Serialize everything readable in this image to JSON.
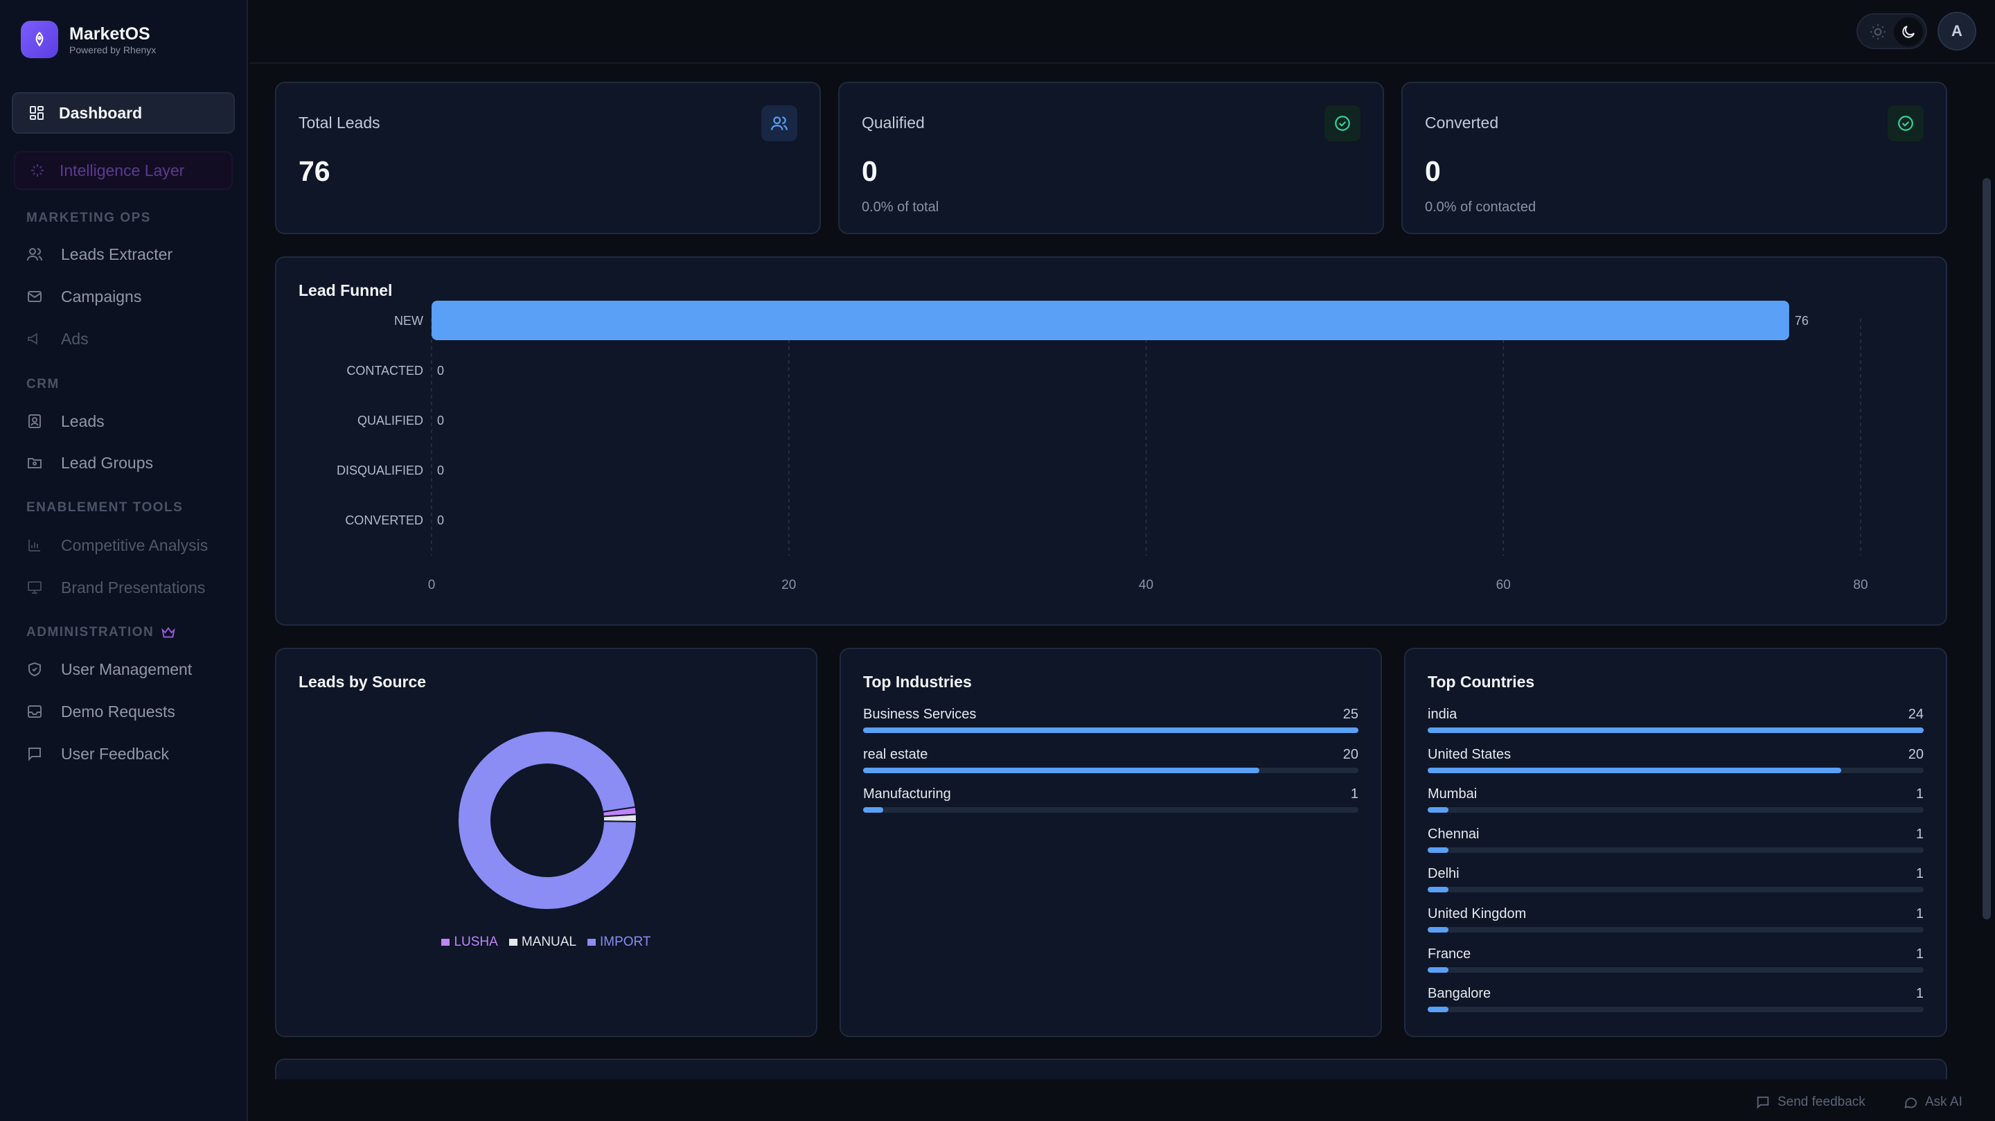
{
  "brand": {
    "name": "MarketOS",
    "tagline": "Powered by Rhenyx"
  },
  "sidebar": {
    "dashboard": "Dashboard",
    "intelligence": "Intelligence Layer",
    "sections": {
      "marketing_ops": "MARKETING OPS",
      "crm": "CRM",
      "enablement": "ENABLEMENT TOOLS",
      "administration": "ADMINISTRATION"
    },
    "items": {
      "leads_extracter": "Leads Extracter",
      "campaigns": "Campaigns",
      "ads": "Ads",
      "leads": "Leads",
      "lead_groups": "Lead Groups",
      "competitive_analysis": "Competitive Analysis",
      "brand_presentations": "Brand Presentations",
      "user_management": "User Management",
      "demo_requests": "Demo Requests",
      "user_feedback": "User Feedback"
    }
  },
  "topbar": {
    "avatar_initial": "A"
  },
  "stats": {
    "total": {
      "title": "Total Leads",
      "value": "76"
    },
    "qualified": {
      "title": "Qualified",
      "value": "0",
      "sub": "0.0% of total"
    },
    "converted": {
      "title": "Converted",
      "value": "0",
      "sub": "0.0% of contacted"
    }
  },
  "funnel": {
    "title": "Lead Funnel"
  },
  "sources": {
    "title": "Leads by Source"
  },
  "industries": {
    "title": "Top Industries",
    "max": 25,
    "rows": [
      {
        "name": "Business Services",
        "count": "25",
        "value": 25
      },
      {
        "name": "real estate",
        "count": "20",
        "value": 20
      },
      {
        "name": "Manufacturing",
        "count": "1",
        "value": 1
      }
    ]
  },
  "countries": {
    "title": "Top Countries",
    "max": 24,
    "rows": [
      {
        "name": "india",
        "count": "24",
        "value": 24
      },
      {
        "name": "United States",
        "count": "20",
        "value": 20
      },
      {
        "name": "Mumbai",
        "count": "1",
        "value": 1
      },
      {
        "name": "Chennai",
        "count": "1",
        "value": 1
      },
      {
        "name": "Delhi",
        "count": "1",
        "value": 1
      },
      {
        "name": "United Kingdom",
        "count": "1",
        "value": 1
      },
      {
        "name": "France",
        "count": "1",
        "value": 1
      },
      {
        "name": "Bangalore",
        "count": "1",
        "value": 1
      }
    ]
  },
  "footer": {
    "send_feedback": "Send feedback",
    "ask_ai": "Ask AI"
  },
  "chart_data": [
    {
      "type": "bar",
      "orientation": "horizontal",
      "title": "Lead Funnel",
      "categories": [
        "NEW",
        "CONTACTED",
        "QUALIFIED",
        "DISQUALIFIED",
        "CONVERTED"
      ],
      "values": [
        76,
        0,
        0,
        0,
        0
      ],
      "xlim": [
        0,
        80
      ],
      "xticks": [
        "0",
        "20",
        "40",
        "60",
        "80"
      ],
      "grid": true,
      "color": "#5aa0f6"
    },
    {
      "type": "pie",
      "title": "Leads by Source",
      "categories": [
        "LUSHA",
        "MANUAL",
        "IMPORT"
      ],
      "values": [
        1,
        1,
        74
      ],
      "colors": [
        "#c084fc",
        "#e5e7eb",
        "#8b8cf4"
      ],
      "legend": "bottom"
    }
  ]
}
